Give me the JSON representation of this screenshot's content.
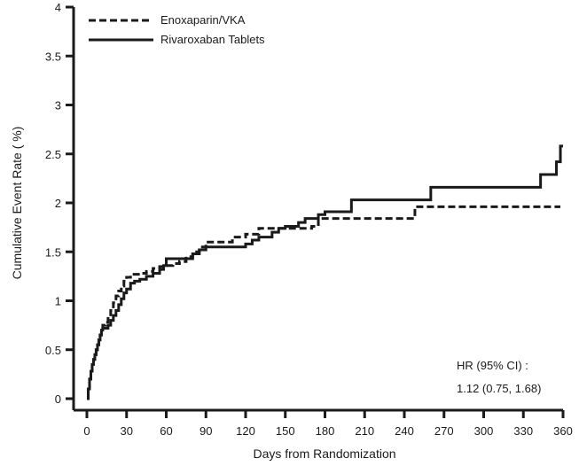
{
  "chart_data": {
    "type": "line",
    "title": "",
    "xlabel": "Days from Randomization",
    "ylabel": "Cumulative Event Rate ( %)",
    "xlim": [
      0,
      360
    ],
    "ylim": [
      0,
      4
    ],
    "xticks": [
      0,
      30,
      60,
      90,
      120,
      150,
      180,
      210,
      240,
      270,
      300,
      330,
      360
    ],
    "xtick_labels": [
      "0",
      "30",
      "60",
      "90",
      "120",
      "150",
      "180",
      "210",
      "240",
      "270",
      "300",
      "330",
      "360"
    ],
    "yticks": [
      0,
      0.5,
      1,
      1.5,
      2,
      2.5,
      3,
      3.5,
      4
    ],
    "ytick_labels": [
      "0",
      "0.5",
      "1",
      "1.5",
      "2",
      "2.5",
      "3",
      "3.5",
      "4"
    ],
    "grid": false,
    "legend_position": "top-left",
    "series": [
      {
        "name": "Enoxaparin/VKA",
        "style": "dashed",
        "color": "#1a1a1a",
        "x": [
          0,
          1,
          2,
          3,
          4,
          5,
          6,
          7,
          8,
          9,
          10,
          11,
          12,
          14,
          16,
          18,
          20,
          22,
          24,
          26,
          28,
          30,
          33,
          36,
          40,
          45,
          50,
          55,
          60,
          65,
          70,
          75,
          80,
          85,
          90,
          100,
          110,
          120,
          130,
          140,
          150,
          160,
          170,
          175,
          180,
          200,
          220,
          240,
          248,
          260,
          280,
          300,
          320,
          340,
          358
        ],
        "values": [
          0,
          0.1,
          0.2,
          0.28,
          0.35,
          0.4,
          0.45,
          0.5,
          0.55,
          0.6,
          0.65,
          0.7,
          0.75,
          0.78,
          0.82,
          0.9,
          0.98,
          1.05,
          1.1,
          1.15,
          1.2,
          1.24,
          1.27,
          1.27,
          1.28,
          1.3,
          1.33,
          1.35,
          1.36,
          1.38,
          1.4,
          1.45,
          1.5,
          1.55,
          1.6,
          1.6,
          1.65,
          1.68,
          1.74,
          1.74,
          1.74,
          1.74,
          1.76,
          1.84,
          1.84,
          1.84,
          1.84,
          1.84,
          1.96,
          1.96,
          1.96,
          1.96,
          1.96,
          1.96,
          1.96
        ]
      },
      {
        "name": "Rivaroxaban Tablets",
        "style": "solid",
        "color": "#1a1a1a",
        "x": [
          0,
          1,
          2,
          3,
          4,
          5,
          6,
          7,
          8,
          9,
          10,
          11,
          12,
          14,
          16,
          18,
          20,
          22,
          24,
          26,
          28,
          30,
          33,
          36,
          40,
          45,
          50,
          55,
          58,
          60,
          70,
          80,
          85,
          90,
          100,
          110,
          120,
          125,
          130,
          140,
          145,
          150,
          160,
          165,
          175,
          180,
          190,
          200,
          210,
          230,
          250,
          260,
          280,
          300,
          320,
          340,
          343,
          355,
          358,
          360
        ],
        "values": [
          0,
          0.1,
          0.2,
          0.28,
          0.35,
          0.4,
          0.45,
          0.5,
          0.55,
          0.6,
          0.65,
          0.7,
          0.72,
          0.72,
          0.75,
          0.8,
          0.85,
          0.9,
          0.96,
          1.02,
          1.08,
          1.12,
          1.18,
          1.2,
          1.22,
          1.25,
          1.28,
          1.32,
          1.36,
          1.43,
          1.43,
          1.48,
          1.52,
          1.55,
          1.55,
          1.55,
          1.58,
          1.62,
          1.65,
          1.7,
          1.74,
          1.76,
          1.8,
          1.84,
          1.88,
          1.91,
          1.91,
          2.03,
          2.03,
          2.03,
          2.03,
          2.16,
          2.16,
          2.16,
          2.16,
          2.16,
          2.29,
          2.42,
          2.58,
          2.58
        ]
      }
    ],
    "annotations": [
      "HR (95% CI) :",
      "1.12 (0.75, 1.68)"
    ]
  }
}
